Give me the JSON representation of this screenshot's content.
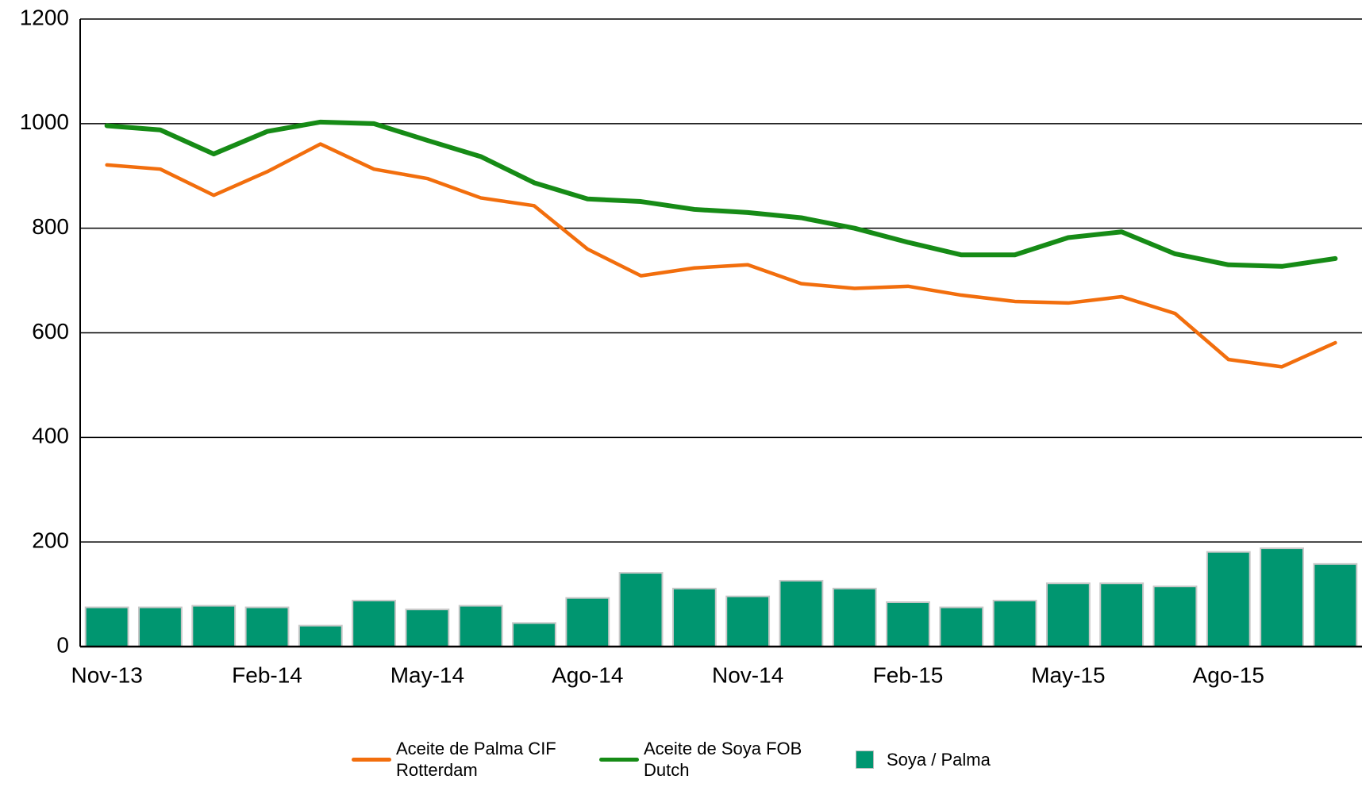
{
  "chart_data": {
    "type": "line-bar",
    "categories": [
      "Nov-13",
      null,
      null,
      "Feb-14",
      null,
      null,
      "May-14",
      null,
      null,
      "Ago-14",
      null,
      null,
      "Nov-14",
      null,
      null,
      "Feb-15",
      null,
      null,
      "May-15",
      null,
      null,
      "Ago-15",
      null,
      null
    ],
    "series": [
      {
        "name": "Aceite de Palma CIF Rotterdam",
        "color": "#f26e0d",
        "kind": "line",
        "values": [
          921,
          913,
          863,
          908,
          961,
          913,
          895,
          858,
          843,
          760,
          709,
          724,
          730,
          694,
          685,
          689,
          672,
          660,
          657,
          669,
          637,
          549,
          535,
          581
        ]
      },
      {
        "name": "Aceite de Soya FOB Dutch",
        "color": "#168b16",
        "kind": "line",
        "values": [
          996,
          988,
          942,
          985,
          1003,
          1000,
          968,
          937,
          887,
          856,
          851,
          836,
          830,
          820,
          800,
          773,
          749,
          749,
          782,
          793,
          751,
          730,
          727,
          742
        ]
      },
      {
        "name": "Soya / Palma",
        "color": "#009670",
        "kind": "bar",
        "values": [
          75,
          75,
          78,
          75,
          40,
          88,
          71,
          78,
          45,
          93,
          141,
          111,
          96,
          126,
          111,
          85,
          75,
          88,
          121,
          121,
          115,
          181,
          188,
          158
        ]
      }
    ],
    "ylim": [
      0,
      1200
    ],
    "yticks": [
      0,
      200,
      400,
      600,
      800,
      1000,
      1200
    ],
    "grid": true
  }
}
